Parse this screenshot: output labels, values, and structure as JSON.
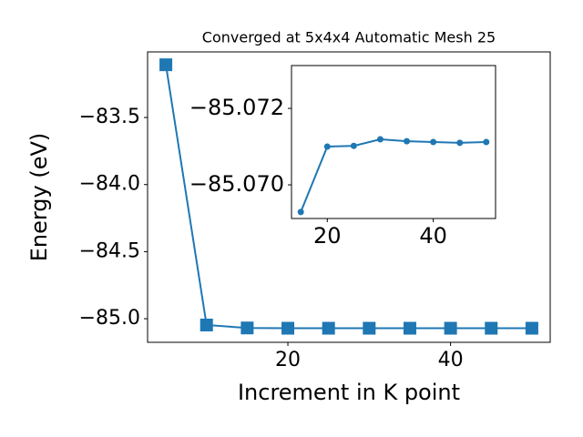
{
  "chart_data": [
    {
      "type": "line",
      "title": "Converged at 5x4x4 Automatic Mesh 25",
      "x_label": "Increment in K point",
      "y_label": "Energy (eV)",
      "x": [
        5,
        10,
        15,
        20,
        25,
        30,
        35,
        40,
        45,
        50
      ],
      "series": [
        {
          "color": "#1f77b4",
          "marker": "square",
          "values": [
            -83.107,
            -85.047,
            -85.069,
            -85.071,
            -85.071,
            -85.071,
            -85.071,
            -85.071,
            -85.071,
            -85.071
          ]
        }
      ],
      "xlim": [
        2.75,
        52.25
      ],
      "ylim": [
        -85.176,
        -83.011
      ],
      "xticks": [
        20,
        40
      ],
      "yticks": [
        {
          "value": -85.0,
          "label": "−85.0"
        },
        {
          "value": -84.5,
          "label": "−84.5"
        },
        {
          "value": -84.0,
          "label": "−84.0"
        },
        {
          "value": -83.5,
          "label": "−83.5"
        }
      ]
    },
    {
      "type": "line",
      "x": [
        15,
        20,
        25,
        30,
        35,
        40,
        45,
        50
      ],
      "series": [
        {
          "color": "#1f77b4",
          "marker": "circle",
          "values": [
            -85.06929,
            -85.071,
            -85.07102,
            -85.07119,
            -85.07114,
            -85.07112,
            -85.0711,
            -85.07112
          ]
        }
      ],
      "xlim": [
        13.25,
        51.75
      ],
      "ylim": [
        -85.06912,
        -85.07312
      ],
      "xticks": [
        20,
        40
      ],
      "yticks": [
        {
          "value": -85.07,
          "label": "−85.070"
        },
        {
          "value": -85.072,
          "label": "−85.072"
        }
      ]
    }
  ]
}
